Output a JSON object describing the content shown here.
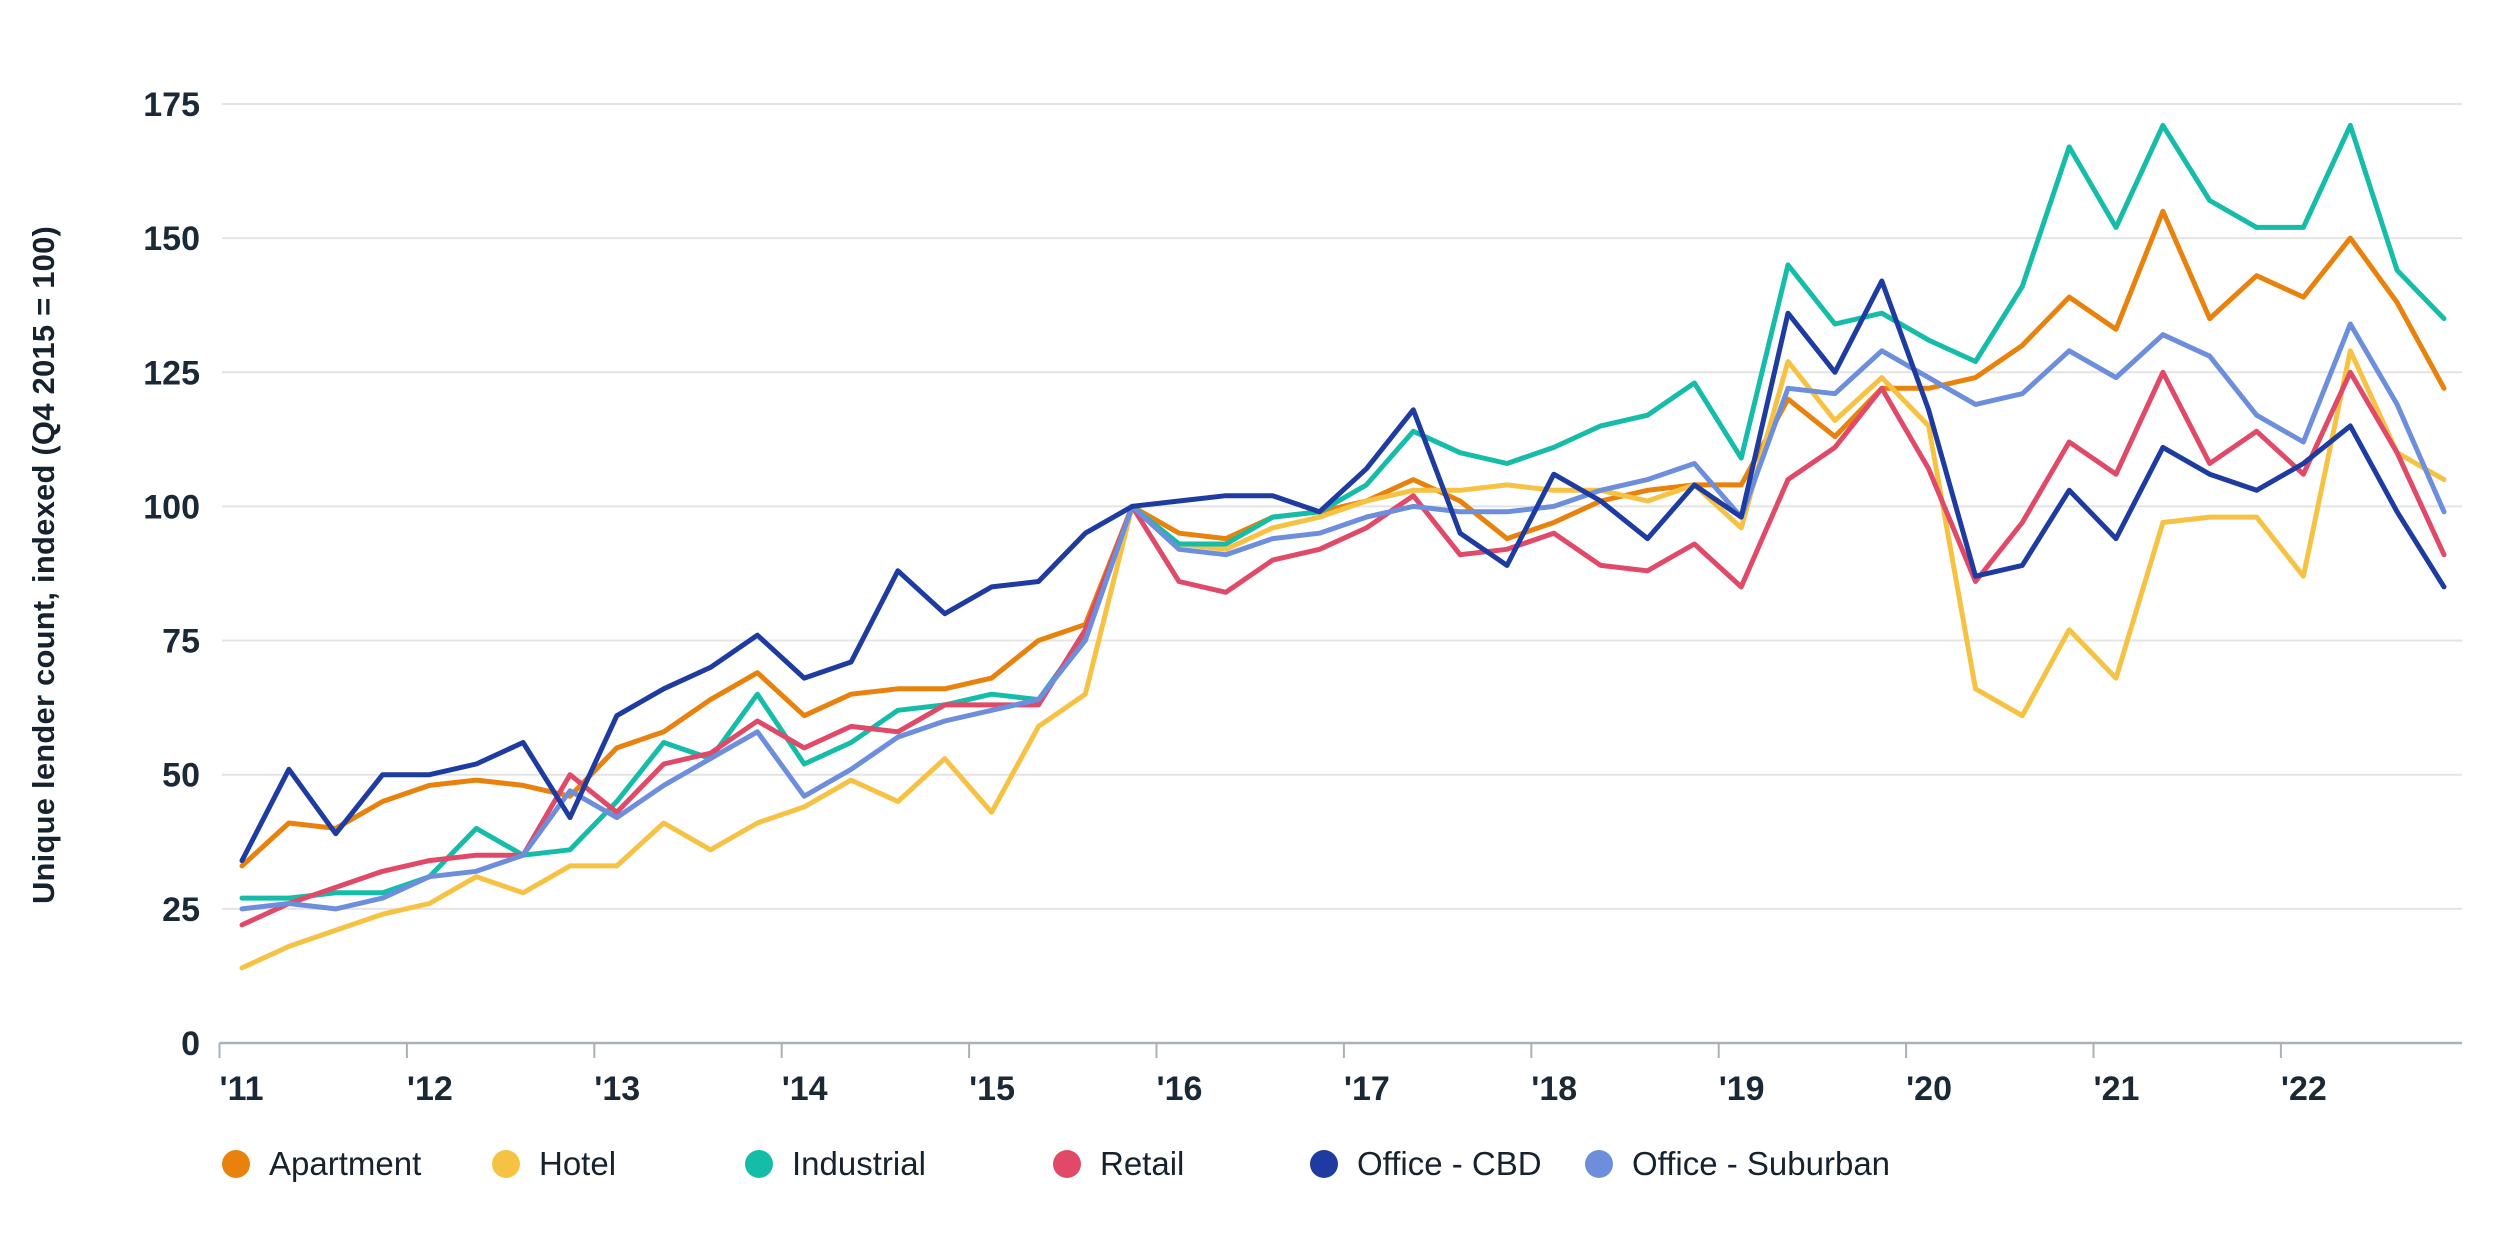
{
  "y_axis": {
    "title": "Unique lender count, indexed (Q4 2015 = 100)",
    "tick_labels": [
      "0",
      "25",
      "50",
      "75",
      "100",
      "125",
      "150",
      "175"
    ]
  },
  "x_axis": {
    "tick_labels": [
      "'11",
      "'12",
      "'13",
      "'14",
      "'15",
      "'16",
      "'17",
      "'18",
      "'19",
      "'20",
      "'21",
      "'22"
    ]
  },
  "legend": {
    "items": [
      {
        "label": "Apartment",
        "color": "#E8820D"
      },
      {
        "label": "Hotel",
        "color": "#F6C243"
      },
      {
        "label": "Industrial",
        "color": "#15BDA9"
      },
      {
        "label": "Retail",
        "color": "#E04A68"
      },
      {
        "label": "Office - CBD",
        "color": "#1E3BA1"
      },
      {
        "label": "Office - Suburban",
        "color": "#6C8EDC"
      }
    ]
  },
  "chart_data": {
    "type": "line",
    "title": "",
    "xlabel": "",
    "ylabel": "Unique lender count, indexed (Q4 2015 = 100)",
    "ylim": [
      0,
      175
    ],
    "yticks": [
      0,
      25,
      50,
      75,
      100,
      125,
      150,
      175
    ],
    "grid": "horizontal",
    "legend_position": "bottom",
    "xtick_labels": [
      "'11",
      "'12",
      "'13",
      "'14",
      "'15",
      "'16",
      "'17",
      "'18",
      "'19",
      "'20",
      "'21",
      "'22"
    ],
    "x": [
      "2011 Q1",
      "2011 Q2",
      "2011 Q3",
      "2011 Q4",
      "2012 Q1",
      "2012 Q2",
      "2012 Q3",
      "2012 Q4",
      "2013 Q1",
      "2013 Q2",
      "2013 Q3",
      "2013 Q4",
      "2014 Q1",
      "2014 Q2",
      "2014 Q3",
      "2014 Q4",
      "2015 Q1",
      "2015 Q2",
      "2015 Q3",
      "2015 Q4",
      "2016 Q1",
      "2016 Q2",
      "2016 Q3",
      "2016 Q4",
      "2017 Q1",
      "2017 Q2",
      "2017 Q3",
      "2017 Q4",
      "2018 Q1",
      "2018 Q2",
      "2018 Q3",
      "2018 Q4",
      "2019 Q1",
      "2019 Q2",
      "2019 Q3",
      "2019 Q4",
      "2020 Q1",
      "2020 Q2",
      "2020 Q3",
      "2020 Q4",
      "2021 Q1",
      "2021 Q2",
      "2021 Q3",
      "2021 Q4",
      "2022 Q1",
      "2022 Q2",
      "2022 Q3",
      "2022 Q4"
    ],
    "index_note": "Q4 2015 = 100",
    "series": [
      {
        "name": "Apartment",
        "color": "#E8820D",
        "values": [
          33,
          41,
          40,
          45,
          48,
          49,
          48,
          46,
          55,
          58,
          64,
          69,
          61,
          65,
          66,
          66,
          68,
          75,
          78,
          100,
          95,
          94,
          98,
          99,
          101,
          105,
          101,
          94,
          97,
          101,
          103,
          104,
          104,
          120,
          113,
          122,
          122,
          124,
          130,
          139,
          133,
          155,
          135,
          143,
          139,
          150,
          138,
          122
        ]
      },
      {
        "name": "Hotel",
        "color": "#F6C243",
        "values": [
          14,
          18,
          21,
          24,
          26,
          31,
          28,
          33,
          33,
          41,
          36,
          41,
          44,
          49,
          45,
          53,
          43,
          59,
          65,
          100,
          93,
          92,
          96,
          98,
          101,
          103,
          103,
          104,
          103,
          103,
          101,
          104,
          96,
          127,
          116,
          124,
          115,
          66,
          61,
          77,
          68,
          97,
          98,
          98,
          87,
          129,
          110,
          105
        ]
      },
      {
        "name": "Industrial",
        "color": "#15BDA9",
        "values": [
          27,
          27,
          28,
          28,
          31,
          40,
          35,
          36,
          45,
          56,
          53,
          65,
          52,
          56,
          62,
          63,
          65,
          64,
          76,
          100,
          93,
          93,
          98,
          99,
          104,
          114,
          110,
          108,
          111,
          115,
          117,
          123,
          109,
          145,
          134,
          136,
          131,
          127,
          141,
          167,
          152,
          171,
          157,
          152,
          152,
          171,
          144,
          135
        ]
      },
      {
        "name": "Retail",
        "color": "#E04A68",
        "values": [
          22,
          26,
          29,
          32,
          34,
          35,
          35,
          50,
          43,
          52,
          54,
          60,
          55,
          59,
          58,
          63,
          63,
          63,
          77,
          100,
          86,
          84,
          90,
          92,
          96,
          102,
          91,
          92,
          95,
          89,
          88,
          93,
          85,
          105,
          111,
          122,
          107,
          86,
          97,
          112,
          106,
          125,
          108,
          114,
          106,
          125,
          110,
          91
        ]
      },
      {
        "name": "Office - Suburban",
        "color": "#6C8EDC",
        "values": [
          25,
          26,
          25,
          27,
          31,
          32,
          35,
          47,
          42,
          48,
          53,
          58,
          46,
          51,
          57,
          60,
          62,
          64,
          75,
          100,
          92,
          91,
          94,
          95,
          98,
          100,
          99,
          99,
          100,
          103,
          105,
          108,
          98,
          122,
          121,
          129,
          124,
          119,
          121,
          129,
          124,
          132,
          128,
          117,
          112,
          134,
          119,
          99
        ]
      },
      {
        "name": "Office - CBD",
        "color": "#1E3BA1",
        "values": [
          34,
          51,
          39,
          50,
          50,
          52,
          56,
          42,
          61,
          66,
          70,
          76,
          68,
          71,
          88,
          80,
          85,
          86,
          95,
          100,
          101,
          102,
          102,
          99,
          107,
          118,
          95,
          89,
          106,
          101,
          94,
          104,
          98,
          136,
          125,
          142,
          118,
          87,
          89,
          103,
          94,
          111,
          106,
          103,
          108,
          115,
          99,
          85
        ]
      }
    ]
  }
}
